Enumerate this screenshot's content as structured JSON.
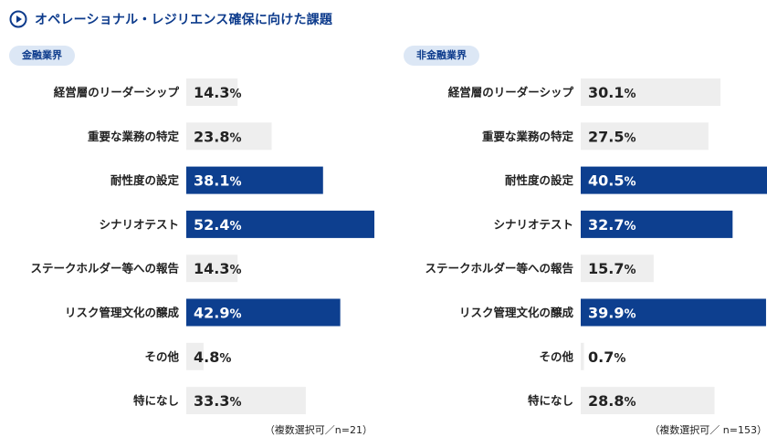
{
  "title": "オペレーショナル・レジリエンス確保に向けた課題",
  "colors": {
    "highlight": "#0d3f8f",
    "base": "#eeeeee",
    "accent": "#0d3b8c",
    "badge_bg": "#dce7f5"
  },
  "chart_data": [
    {
      "type": "bar",
      "orientation": "horizontal",
      "title": "金融業界",
      "note": "（複数選択可／n=21）",
      "unit": "%",
      "xlim": [
        0,
        52.4
      ],
      "categories": [
        "経営層のリーダーシップ",
        "重要な業務の特定",
        "耐性度の設定",
        "シナリオテスト",
        "ステークホルダー等への報告",
        "リスク管理文化の醸成",
        "その他",
        "特になし"
      ],
      "values": [
        14.3,
        23.8,
        38.1,
        52.4,
        14.3,
        42.9,
        4.8,
        33.3
      ],
      "highlighted": [
        false,
        false,
        true,
        true,
        false,
        true,
        false,
        false
      ]
    },
    {
      "type": "bar",
      "orientation": "horizontal",
      "title": "非金融業界",
      "note": "（複数選択可／ n=153）",
      "unit": "%",
      "xlim": [
        0,
        40.5
      ],
      "categories": [
        "経営層のリーダーシップ",
        "重要な業務の特定",
        "耐性度の設定",
        "シナリオテスト",
        "ステークホルダー等への報告",
        "リスク管理文化の醸成",
        "その他",
        "特になし"
      ],
      "values": [
        30.1,
        27.5,
        40.5,
        32.7,
        15.7,
        39.9,
        0.7,
        28.8
      ],
      "highlighted": [
        false,
        false,
        true,
        true,
        false,
        true,
        false,
        false
      ]
    }
  ]
}
